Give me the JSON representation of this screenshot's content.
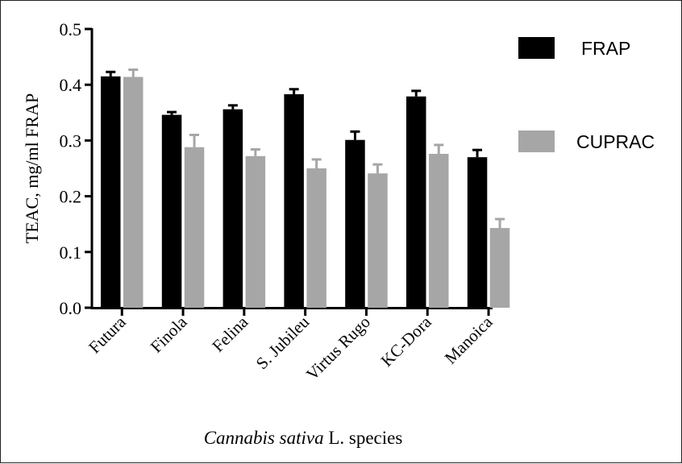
{
  "chart_data": {
    "type": "bar",
    "categories": [
      "Futura",
      "Finola",
      "Felina",
      "S. Jubileu",
      "Virtus Rugo",
      "KC-Dora",
      "Manoica"
    ],
    "series": [
      {
        "name": "FRAP",
        "color": "#000000",
        "values": [
          0.415,
          0.346,
          0.356,
          0.383,
          0.301,
          0.379,
          0.27
        ],
        "errors": [
          0.008,
          0.005,
          0.007,
          0.009,
          0.015,
          0.01,
          0.013
        ]
      },
      {
        "name": "CUPRAC",
        "color": "#a6a6a6",
        "values": [
          0.414,
          0.288,
          0.272,
          0.25,
          0.241,
          0.276,
          0.143
        ],
        "errors": [
          0.013,
          0.022,
          0.012,
          0.016,
          0.016,
          0.016,
          0.016
        ]
      }
    ],
    "ylabel": "TEAC, mg/ml FRAP",
    "xlabel": {
      "italic": "Cannabis sativa",
      "rest": " L. species"
    },
    "ylim": [
      0,
      0.5
    ],
    "yticks": [
      "0.0",
      "0.1",
      "0.2",
      "0.3",
      "0.4",
      "0.5"
    ],
    "grid": false,
    "legend_position": "top-right"
  }
}
